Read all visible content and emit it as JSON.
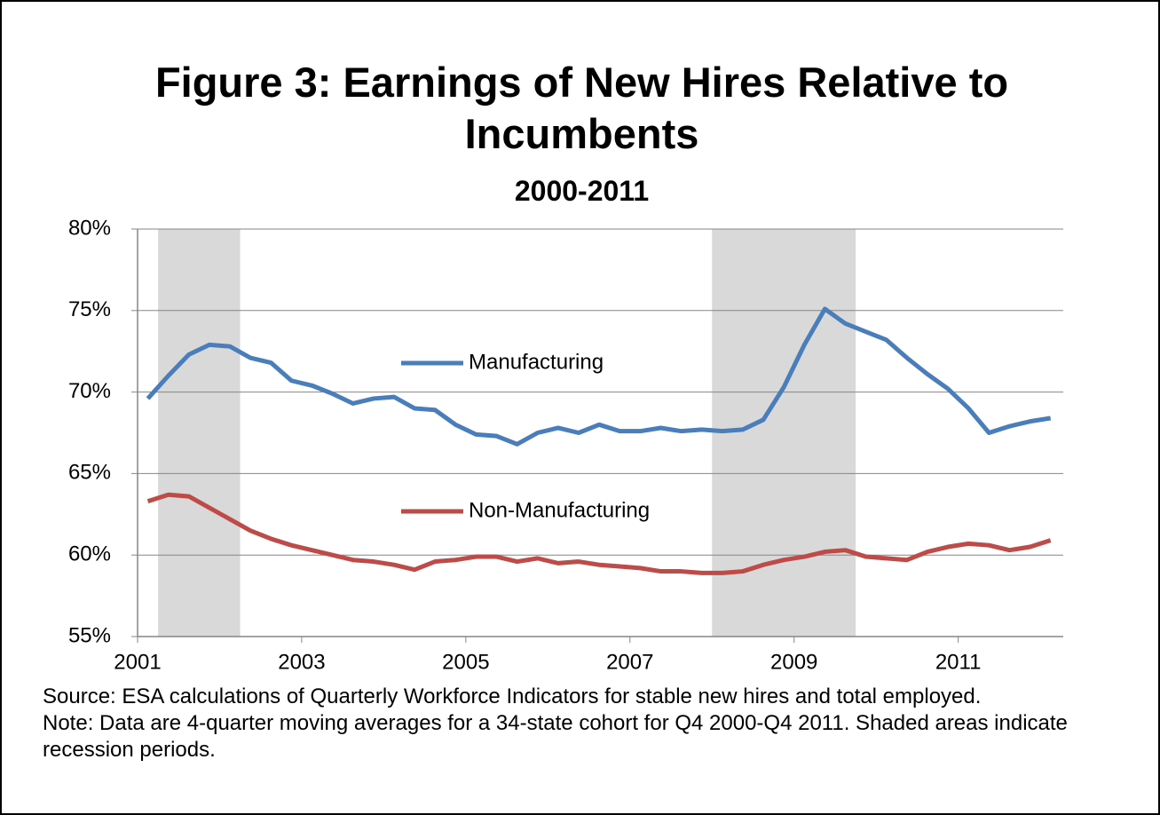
{
  "chart_data": {
    "type": "line",
    "title": "Figure 3: Earnings of New Hires Relative to Incumbents",
    "subtitle": "2000-2011",
    "x": [
      2001.125,
      2001.375,
      2001.625,
      2001.875,
      2002.125,
      2002.375,
      2002.625,
      2002.875,
      2003.125,
      2003.375,
      2003.625,
      2003.875,
      2004.125,
      2004.375,
      2004.625,
      2004.875,
      2005.125,
      2005.375,
      2005.625,
      2005.875,
      2006.125,
      2006.375,
      2006.625,
      2006.875,
      2007.125,
      2007.375,
      2007.625,
      2007.875,
      2008.125,
      2008.375,
      2008.625,
      2008.875,
      2009.125,
      2009.375,
      2009.625,
      2009.875,
      2010.125,
      2010.375,
      2010.625,
      2010.875,
      2011.125,
      2011.375,
      2011.625,
      2011.875,
      2012.125
    ],
    "series": [
      {
        "name": "Manufacturing",
        "color": "#4a7ebb",
        "values": [
          69.6,
          71.0,
          72.3,
          72.9,
          72.8,
          72.1,
          71.8,
          70.7,
          70.4,
          69.9,
          69.3,
          69.6,
          69.7,
          69.0,
          68.9,
          68.0,
          67.4,
          67.3,
          66.8,
          67.5,
          67.8,
          67.5,
          68.0,
          67.6,
          67.6,
          67.8,
          67.6,
          67.7,
          67.6,
          67.7,
          68.3,
          70.3,
          72.9,
          75.1,
          74.2,
          73.7,
          73.2,
          72.1,
          71.1,
          70.2,
          69.0,
          67.5,
          67.9,
          68.2,
          68.4
        ]
      },
      {
        "name": "Non-Manufacturing",
        "color": "#be4b48",
        "values": [
          63.3,
          63.7,
          63.6,
          62.9,
          62.2,
          61.5,
          61.0,
          60.6,
          60.3,
          60.0,
          59.7,
          59.6,
          59.4,
          59.1,
          59.6,
          59.7,
          59.9,
          59.9,
          59.6,
          59.8,
          59.5,
          59.6,
          59.4,
          59.3,
          59.2,
          59.0,
          59.0,
          58.9,
          58.9,
          59.0,
          59.4,
          59.7,
          59.9,
          60.2,
          60.3,
          59.9,
          59.8,
          59.7,
          60.2,
          60.5,
          60.7,
          60.6,
          60.3,
          60.5,
          60.9
        ]
      }
    ],
    "shaded_regions": [
      [
        2001.25,
        2002.25
      ],
      [
        2008.0,
        2009.75
      ]
    ],
    "xlim": [
      2001,
      2012.28
    ],
    "xticks": [
      2001,
      2003,
      2005,
      2007,
      2009,
      2011
    ],
    "ylim": [
      55,
      80
    ],
    "yticks": [
      {
        "value": 55,
        "label": "55%"
      },
      {
        "value": 60,
        "label": "60%"
      },
      {
        "value": 65,
        "label": "65%"
      },
      {
        "value": 70,
        "label": "70%"
      },
      {
        "value": 75,
        "label": "75%"
      },
      {
        "value": 80,
        "label": "80%"
      }
    ],
    "grid": true,
    "notes": [
      "Source:  ESA calculations of Quarterly Workforce Indicators for stable new hires and total employed.",
      "Note:  Data are 4-quarter moving averages for a 34-state cohort for Q4 2000-Q4 2011. Shaded areas indicate recession periods."
    ]
  }
}
